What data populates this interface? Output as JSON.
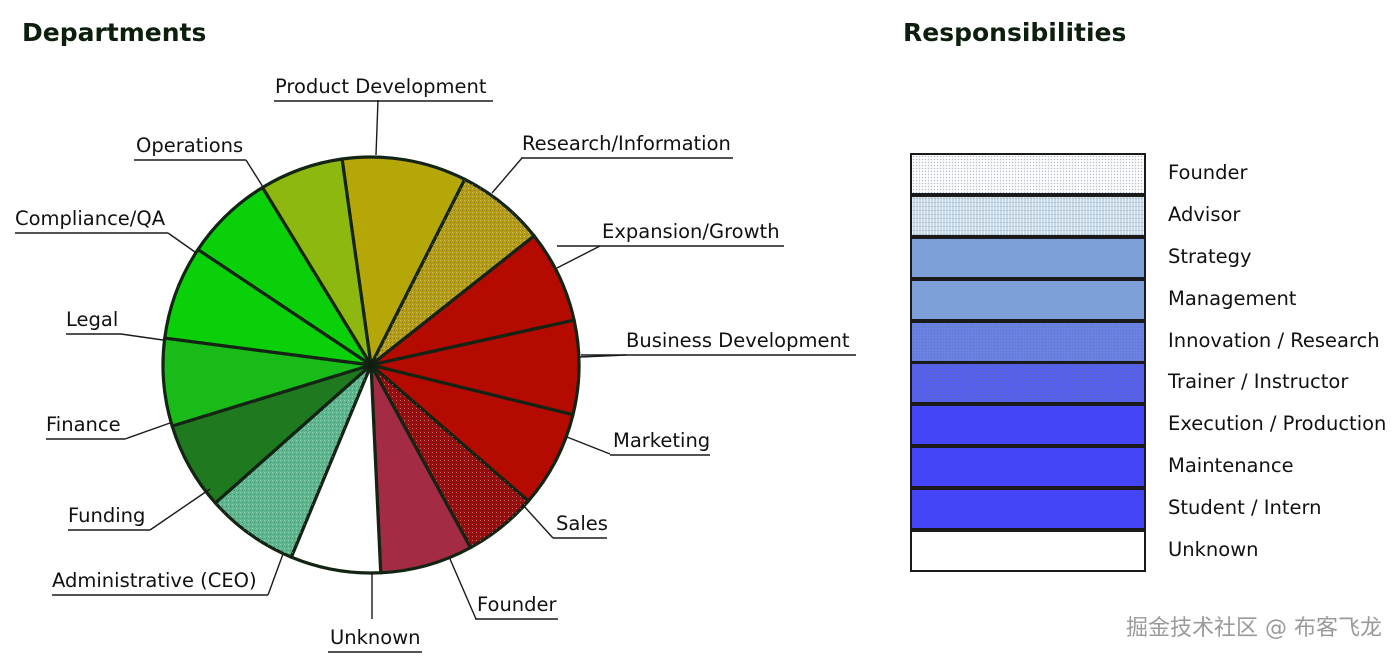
{
  "chart_data": [
    {
      "type": "pie",
      "title": "Departments",
      "slices": [
        {
          "label": "Product Development",
          "value": 9.8,
          "color": "#b5a708"
        },
        {
          "label": "Research/Information",
          "value": 7.0,
          "color": "#b49c16",
          "pattern": "stipple"
        },
        {
          "label": "Expansion/Growth",
          "value": 7.3,
          "color": "#b40a00"
        },
        {
          "label": "Business Development",
          "value": 7.4,
          "color": "#b40a00"
        },
        {
          "label": "Marketing",
          "value": 7.6,
          "color": "#b40a00"
        },
        {
          "label": "Sales",
          "value": 5.8,
          "color": "#990f0f",
          "pattern": "stipple"
        },
        {
          "label": "Founder",
          "value": 7.3,
          "color": "#a32b43"
        },
        {
          "label": "Unknown",
          "value": 7.1,
          "color": "#ffffff"
        },
        {
          "label": "Administrative (CEO)",
          "value": 7.3,
          "color": "#5db88f",
          "pattern": "stipple"
        },
        {
          "label": "Funding",
          "value": 6.9,
          "color": "#1f7a1f"
        },
        {
          "label": "Finance",
          "value": 6.9,
          "color": "#19bb19"
        },
        {
          "label": "Legal",
          "value": 7.4,
          "color": "#0ad00a"
        },
        {
          "label": "Compliance/QA",
          "value": 7.0,
          "color": "#0ad00a"
        },
        {
          "label": "Operations",
          "value": 6.6,
          "color": "#8db80f"
        }
      ]
    },
    {
      "type": "legend",
      "title": "Responsibilities",
      "items": [
        {
          "label": "Founder",
          "color": "#ffffff",
          "pattern": "stipple"
        },
        {
          "label": "Advisor",
          "color": "#c9dbe8",
          "pattern": "hatch"
        },
        {
          "label": "Strategy",
          "color": "#7b9fd6"
        },
        {
          "label": "Management",
          "color": "#7b9fd6"
        },
        {
          "label": "Innovation / Research",
          "color": "#6a82e6",
          "pattern": "stipple"
        },
        {
          "label": "Trainer / Instructor",
          "color": "#5560ee",
          "pattern": "stipple"
        },
        {
          "label": "Execution / Production",
          "color": "#4545f8"
        },
        {
          "label": "Maintenance",
          "color": "#4545f8"
        },
        {
          "label": "Student / Intern",
          "color": "#4545f8"
        },
        {
          "label": "Unknown",
          "color": "#ffffff"
        }
      ]
    }
  ],
  "watermark": "掘金技术社区 @ 布客飞龙"
}
